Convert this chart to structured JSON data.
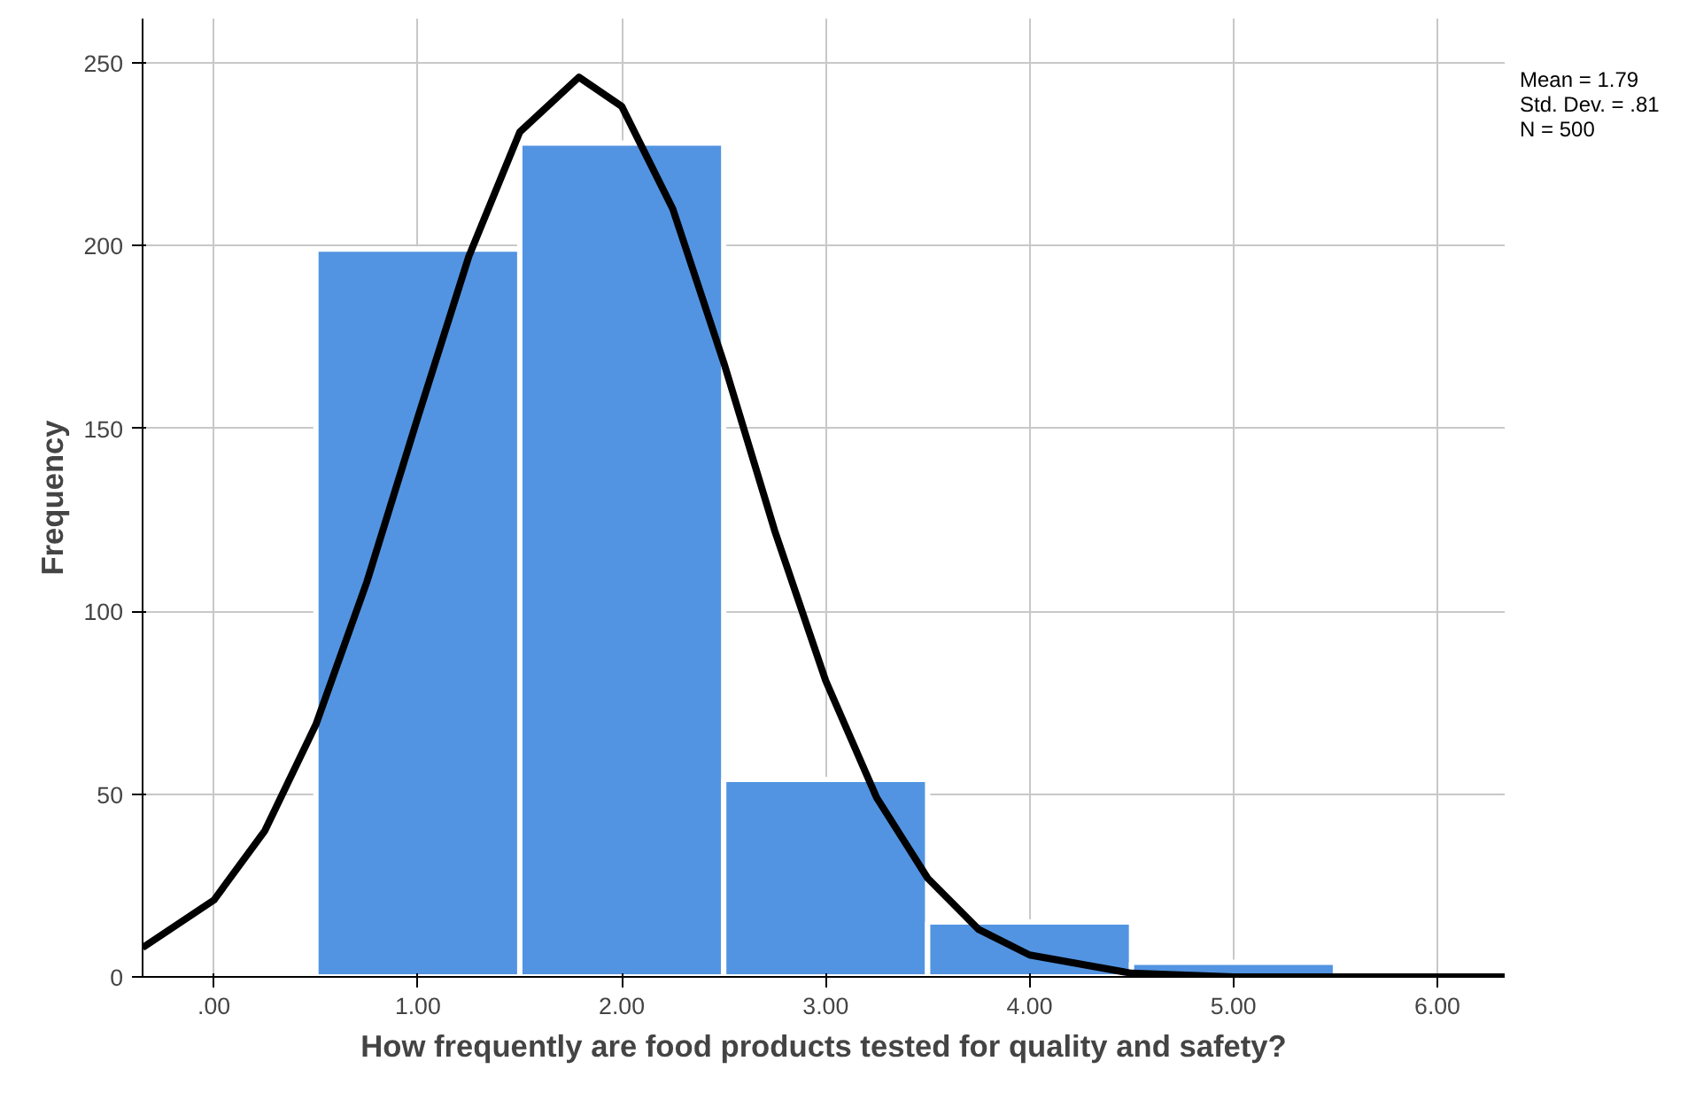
{
  "chart_data": {
    "type": "histogram",
    "xlabel": "How frequently are food products tested for quality and safety?",
    "ylabel": "Frequency",
    "bins": [
      0.5,
      1.5,
      2.5,
      3.5,
      4.5,
      5.5
    ],
    "series": [
      {
        "color": "#5294e2",
        "values": [
          199,
          228,
          54,
          15,
          4
        ]
      },
      {
        "type": "line",
        "color": "#000000",
        "x": [
          -0.35,
          0,
          0.25,
          0.5,
          0.75,
          1.0,
          1.25,
          1.5,
          1.79,
          2.0,
          2.25,
          2.5,
          2.75,
          3.0,
          3.25,
          3.5,
          3.75,
          4.0,
          4.5,
          5.0,
          5.5,
          6.33
        ],
        "values": [
          8,
          21,
          40,
          69,
          108,
          153,
          197,
          231,
          246,
          238,
          210,
          168,
          122,
          81,
          49,
          27,
          13,
          6,
          1,
          0,
          0,
          0
        ]
      }
    ],
    "xlim": [
      -0.35,
      6.33
    ],
    "ylim": [
      0,
      262
    ],
    "xticks": [
      {
        "value": 0,
        "label": ".00"
      },
      {
        "value": 1,
        "label": "1.00"
      },
      {
        "value": 2,
        "label": "2.00"
      },
      {
        "value": 3,
        "label": "3.00"
      },
      {
        "value": 4,
        "label": "4.00"
      },
      {
        "value": 5,
        "label": "5.00"
      },
      {
        "value": 6,
        "label": "6.00"
      }
    ],
    "yticks": [
      0,
      50,
      100,
      150,
      200,
      250
    ],
    "grid": true,
    "annotations": [
      "Mean = 1.79",
      "Std. Dev. = .81",
      "N = 500"
    ]
  }
}
